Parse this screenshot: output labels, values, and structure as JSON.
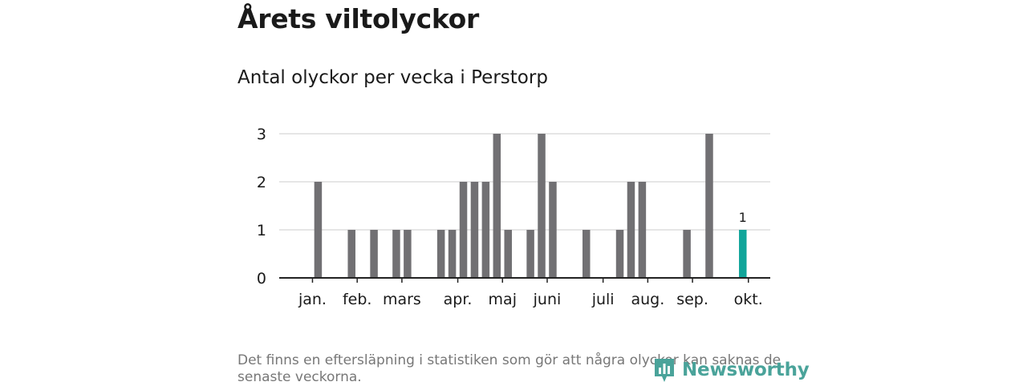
{
  "header": {
    "title": "Årets viltolyckor",
    "subtitle": "Antal olyckor per vecka i Perstorp"
  },
  "chart_data": {
    "type": "bar",
    "ylim": [
      0,
      3
    ],
    "yticks": [
      0,
      1,
      2,
      3
    ],
    "x_unit": "week",
    "x_range": [
      1,
      42
    ],
    "month_ticks": [
      {
        "label": "jan.",
        "week": 1.5
      },
      {
        "label": "feb.",
        "week": 5.5
      },
      {
        "label": "mars",
        "week": 9.5
      },
      {
        "label": "apr.",
        "week": 14.5
      },
      {
        "label": "maj",
        "week": 18.5
      },
      {
        "label": "juni",
        "week": 22.5
      },
      {
        "label": "juli",
        "week": 27.5
      },
      {
        "label": "aug.",
        "week": 31.5
      },
      {
        "label": "sep.",
        "week": 35.5
      },
      {
        "label": "okt.",
        "week": 40.5
      }
    ],
    "series": [
      {
        "weeks": [
          2,
          5,
          7,
          9,
          10,
          13,
          14,
          15,
          16,
          17,
          18,
          19,
          21,
          22,
          23,
          26,
          29,
          30,
          31,
          35,
          37,
          40
        ],
        "values": [
          2,
          1,
          1,
          1,
          1,
          1,
          1,
          2,
          2,
          2,
          3,
          1,
          1,
          3,
          2,
          1,
          1,
          2,
          2,
          1,
          3,
          1
        ]
      }
    ],
    "highlight": {
      "week": 40,
      "value": 1,
      "label": "1"
    },
    "grid": true,
    "colors": {
      "bar": "#717073",
      "highlight": "#11a59a",
      "grid": "#dddddd",
      "axis": "#222222"
    }
  },
  "footer": {
    "note": "Det finns en eftersläpning i statistiken som gör att några olyckor kan saknas de senaste veckorna.",
    "logo_text": "Newsworthy",
    "logo_icon": "newsworthy-logo-icon"
  }
}
